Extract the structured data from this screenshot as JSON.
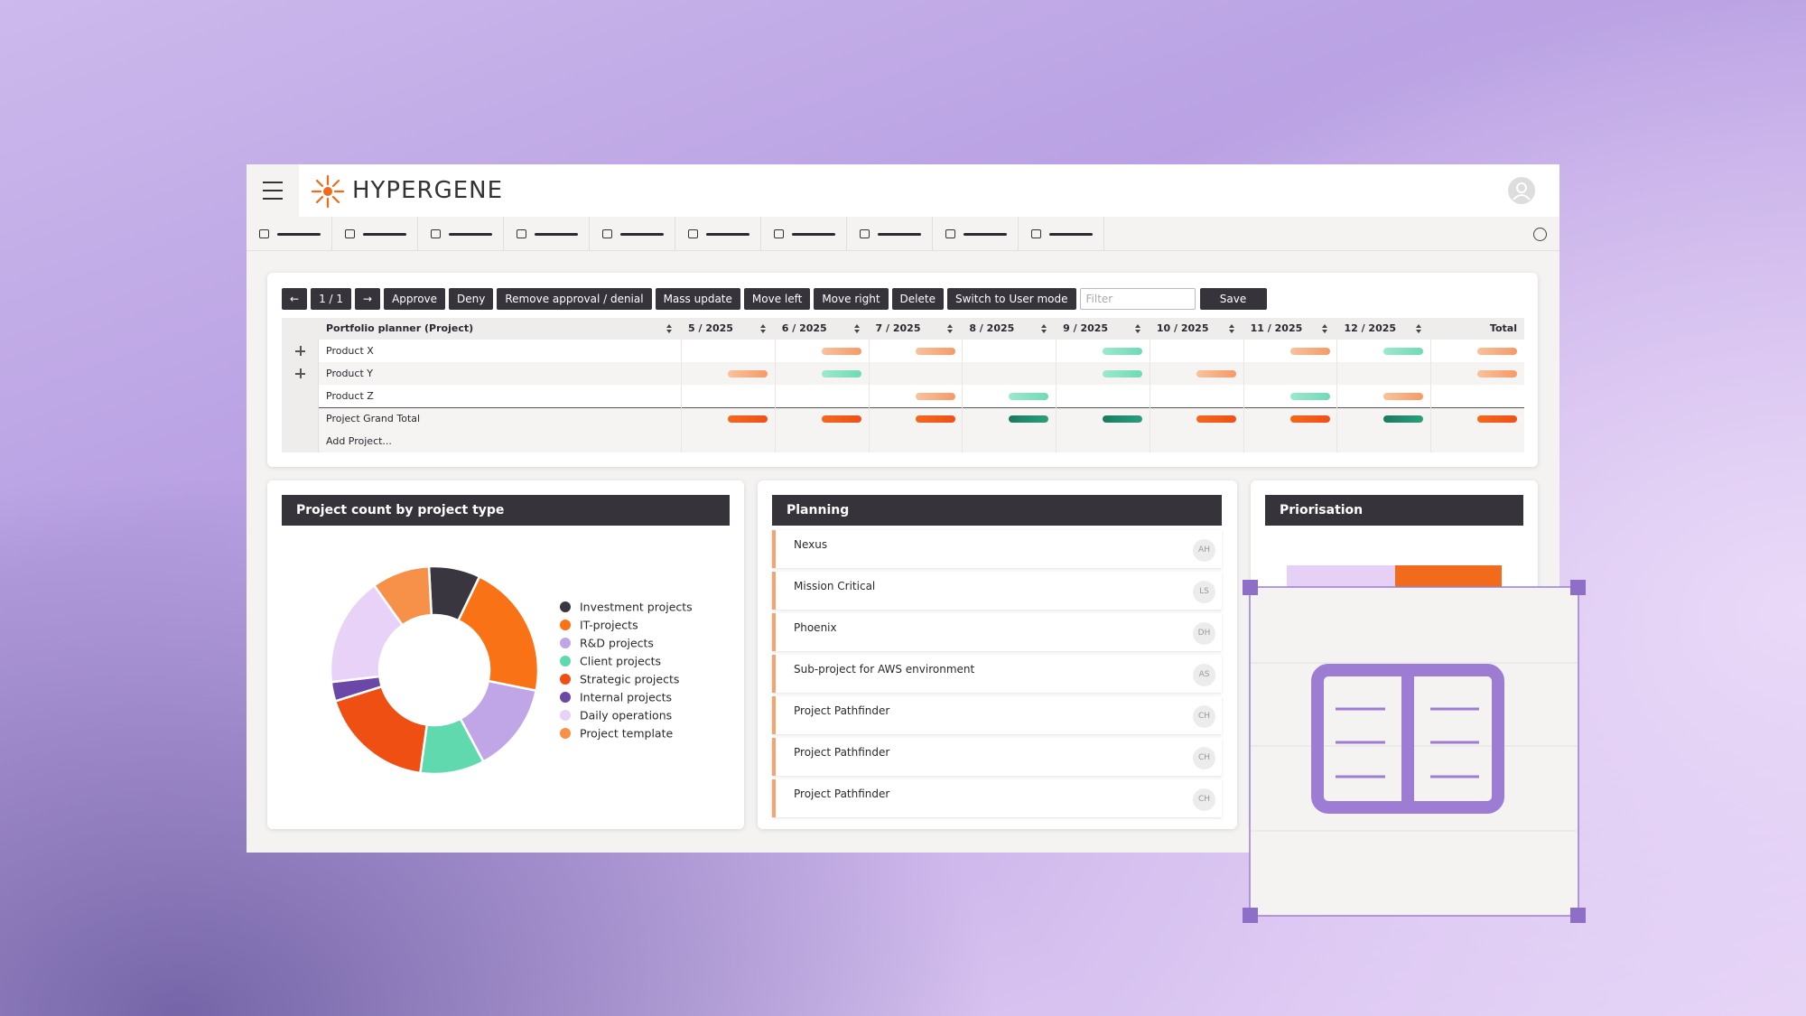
{
  "header": {
    "brand": "HYPERGENE"
  },
  "toolbar": {
    "buttons": [
      "←",
      "1 / 1",
      "→",
      "Approve",
      "Deny",
      "Remove approval / denial",
      "Mass update",
      "Move left",
      "Move right",
      "Delete",
      "Switch to User mode"
    ],
    "filter": "Filter",
    "save": "Save"
  },
  "table": {
    "columns": [
      "Portfolio planner (Project)",
      "5 / 2025",
      "6 / 2025",
      "7 / 2025",
      "8 / 2025",
      "9 / 2025",
      "10 / 2025",
      "11 / 2025",
      "12 / 2025",
      "Total"
    ],
    "rows": [
      "Product X",
      "Product Y",
      "Product Z",
      "Project Grand Total",
      "Add Project..."
    ]
  },
  "chart_data": {
    "type": "pie",
    "title": "Project count by project type",
    "categories": [
      "Investment projects",
      "IT-projects",
      "R&D projects",
      "Client projects",
      "Strategic projects",
      "Internal projects",
      "Daily operations",
      "Project template"
    ],
    "values": [
      8,
      21,
      14,
      10,
      18,
      3,
      17,
      9
    ],
    "colors": [
      "#3a3640",
      "#f97316",
      "#c0a6e6",
      "#5fd9ad",
      "#ef4f12",
      "#6b48a8",
      "#e8d2f7",
      "#f7914a"
    ]
  },
  "planning": {
    "title": "Planning",
    "items": [
      {
        "name": "Nexus",
        "initials": "AH"
      },
      {
        "name": "Mission Critical",
        "initials": "LS"
      },
      {
        "name": "Phoenix",
        "initials": "DH"
      },
      {
        "name": "Sub-project for AWS environment",
        "initials": "AS"
      },
      {
        "name": "Project Pathfinder",
        "initials": "CH"
      },
      {
        "name": "Project Pathfinder",
        "initials": "CH"
      },
      {
        "name": "Project Pathfinder",
        "initials": "CH"
      }
    ]
  },
  "priorisation": {
    "title": "Priorisation"
  }
}
